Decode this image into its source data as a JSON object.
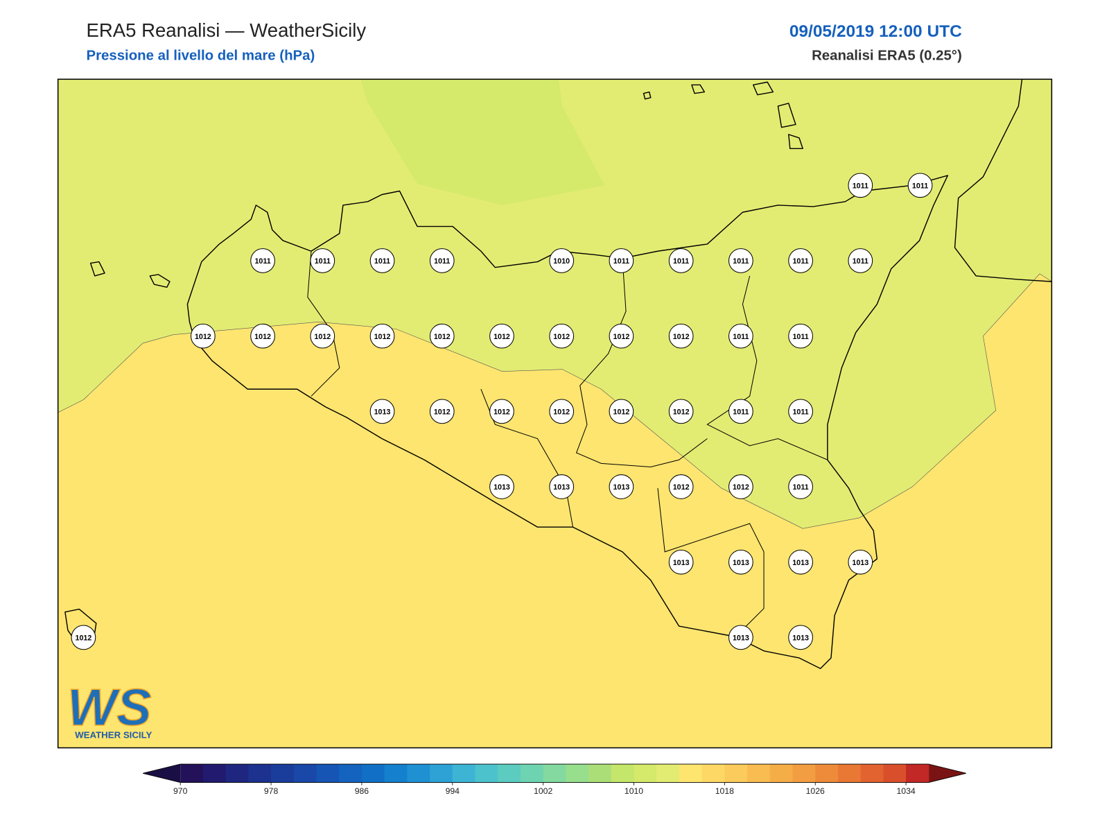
{
  "header": {
    "title": "ERA5 Reanalisi — WeatherSicily",
    "subtitle": "Pressione al livello del mare (hPa)",
    "datetime": "09/05/2019 12:00 UTC",
    "source": "Reanalisi ERA5 (0.25°)"
  },
  "stations": {
    "rows": [
      [
        null,
        null,
        null,
        null,
        null,
        null,
        null,
        null,
        null,
        null,
        null,
        null,
        null,
        1011,
        1011
      ],
      [
        null,
        null,
        null,
        1011,
        1011,
        1011,
        1011,
        null,
        1010,
        1011,
        1011,
        1011,
        1011,
        1011,
        null
      ],
      [
        null,
        null,
        1012,
        1012,
        1012,
        1012,
        1012,
        1012,
        1012,
        1012,
        1012,
        1011,
        1011,
        null,
        null
      ],
      [
        null,
        null,
        null,
        null,
        null,
        1013,
        1012,
        1012,
        1012,
        1012,
        1012,
        1011,
        1011,
        null,
        null
      ],
      [
        null,
        null,
        null,
        null,
        null,
        null,
        null,
        1013,
        1013,
        1013,
        1012,
        1012,
        1011,
        null,
        null
      ],
      [
        null,
        null,
        null,
        null,
        null,
        null,
        null,
        null,
        null,
        null,
        1013,
        1013,
        1013,
        1013,
        null
      ],
      [
        1012,
        null,
        null,
        null,
        null,
        null,
        null,
        null,
        null,
        null,
        null,
        1013,
        1013,
        null,
        null
      ]
    ]
  },
  "colorbar": {
    "lim": [
      970,
      1036
    ],
    "ticks": [
      970,
      978,
      986,
      994,
      1002,
      1010,
      1018,
      1026,
      1034
    ],
    "colors": [
      "#23125a",
      "#221a6e",
      "#1f2680",
      "#1d318f",
      "#1a3d9c",
      "#1948a8",
      "#1655b3",
      "#1463be",
      "#1170c6",
      "#1580cd",
      "#1f90d2",
      "#2ea2d5",
      "#3db4d4",
      "#4cc2cc",
      "#5ccbc0",
      "#6ed3b0",
      "#83d99f",
      "#97de8d",
      "#acde78",
      "#c4e66a",
      "#d5e96b",
      "#e3ec72",
      "#fde56f",
      "#fdd865",
      "#fbcb5b",
      "#f8bc50",
      "#f5ad48",
      "#f29d41",
      "#ee8b3a",
      "#e97834",
      "#e2632f",
      "#da4f2b",
      "#c22826"
    ],
    "under": "#1a0f45",
    "over": "#7a1414"
  },
  "logo": {
    "text": "WS",
    "caption": "WEATHER SICILY"
  }
}
